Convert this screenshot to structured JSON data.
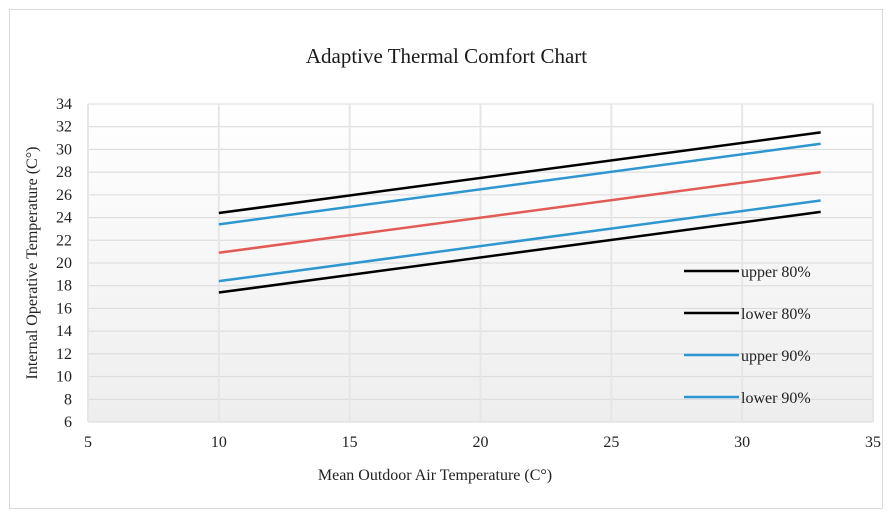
{
  "chart_data": {
    "type": "line",
    "title": "Adaptive Thermal Comfort Chart",
    "xlabel": "Mean Outdoor Air Temperature (C°)",
    "ylabel": "Internal Operative Temperature (C°)",
    "xlim": [
      5,
      35
    ],
    "ylim": [
      6,
      34
    ],
    "xticks": [
      5,
      10,
      15,
      20,
      25,
      30,
      35
    ],
    "yticks": [
      6,
      8,
      10,
      12,
      14,
      16,
      18,
      20,
      22,
      24,
      26,
      28,
      30,
      32,
      34
    ],
    "grid": true,
    "legend_position": "bottom-right",
    "series": [
      {
        "name": "upper 80%",
        "color": "#000000",
        "x": [
          10,
          33
        ],
        "y": [
          24.4,
          31.5
        ]
      },
      {
        "name": "lower 80%",
        "color": "#000000",
        "x": [
          10,
          33
        ],
        "y": [
          17.4,
          24.5
        ]
      },
      {
        "name": "upper 90%",
        "color": "#2e96d0",
        "x": [
          10,
          33
        ],
        "y": [
          23.4,
          30.5
        ]
      },
      {
        "name": "lower 90%",
        "color": "#2e96d0",
        "x": [
          10,
          33
        ],
        "y": [
          18.4,
          25.5
        ]
      },
      {
        "color": "#e35b55",
        "x": [
          10,
          33
        ],
        "y": [
          20.9,
          28.0
        ]
      }
    ]
  }
}
